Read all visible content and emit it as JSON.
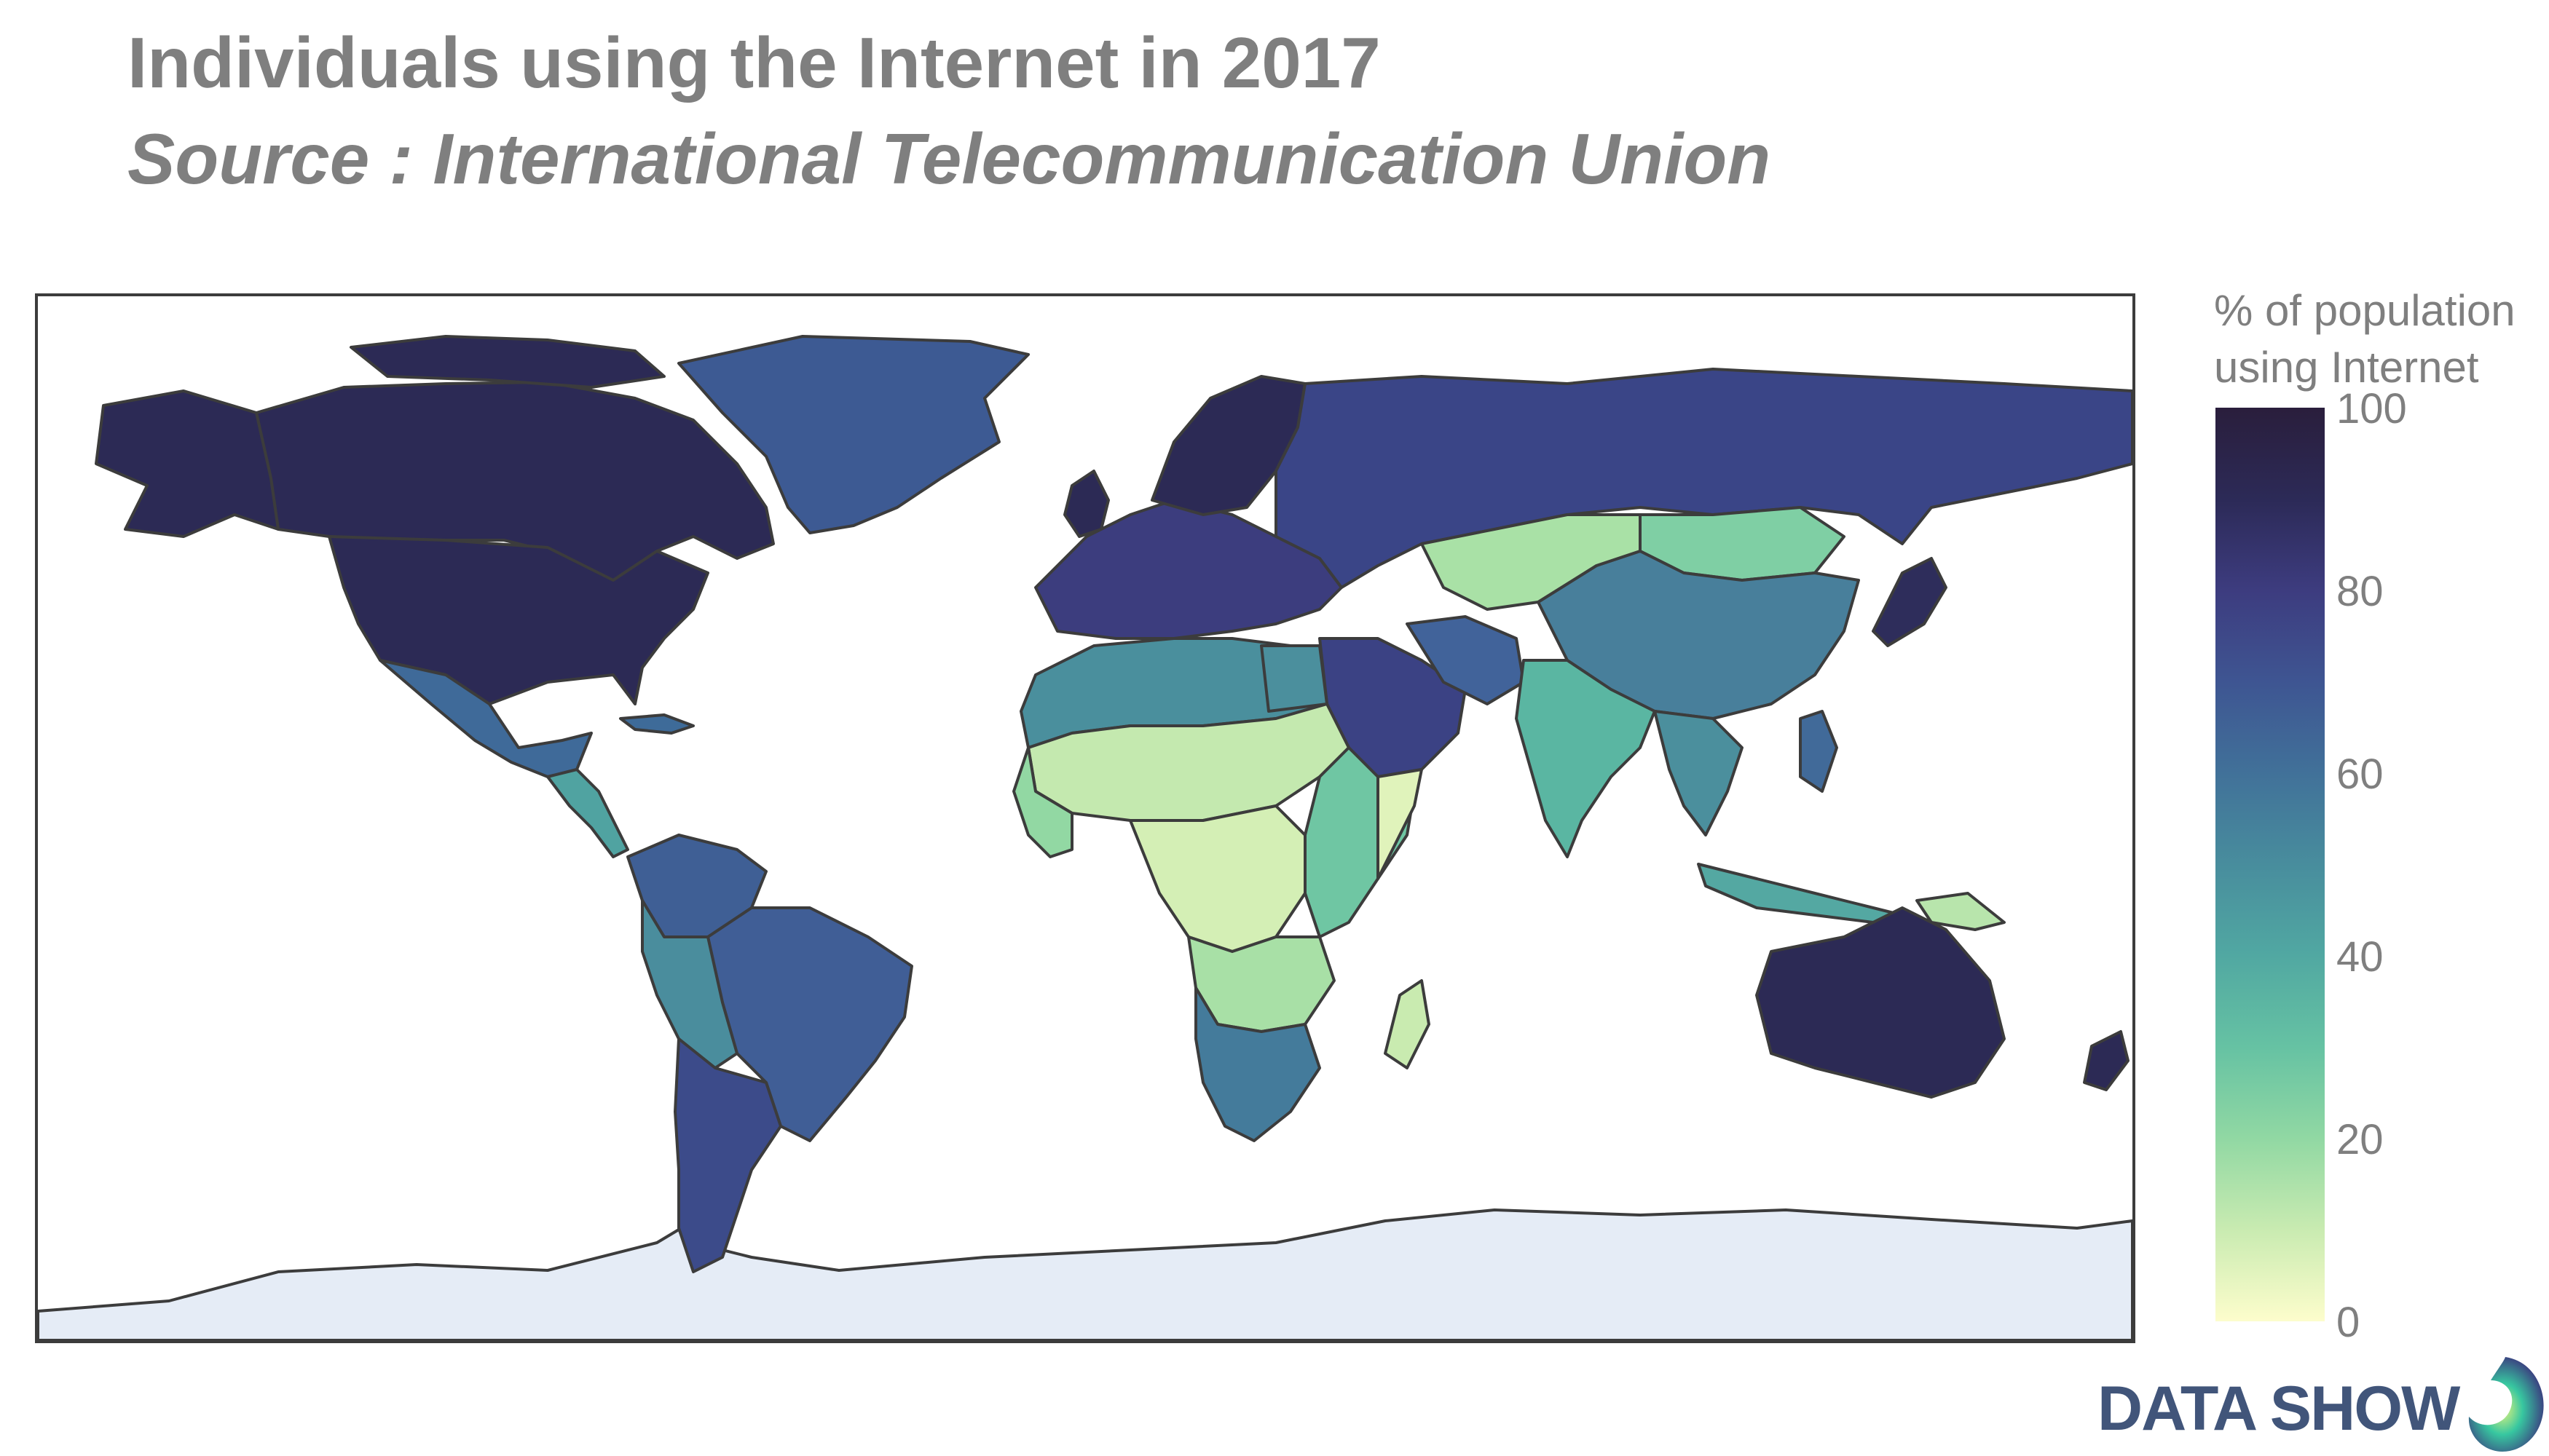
{
  "header": {
    "title": "Individuals using the Internet in 2017",
    "subtitle": "Source : International Telecommunication Union"
  },
  "colorbar": {
    "title_line1": "% of population",
    "title_line2": "using Internet",
    "ticks": [
      "100",
      "80",
      "60",
      "40",
      "20",
      "0"
    ],
    "range": [
      0,
      100
    ],
    "colors": [
      "#fdfdcc",
      "#c9ebb1",
      "#91d8a3",
      "#66c2a3",
      "#51a8a2",
      "#488d9d",
      "#417199",
      "#3e5592",
      "#3d3c7f",
      "#2c2a57",
      "#2a1e3c"
    ]
  },
  "map": {
    "projection": "equirectangular",
    "land_no_data_color": "#e5ecf6",
    "border_color": "#3c3c3c"
  },
  "brand": {
    "text": "DATA SHOW",
    "logo_icon": "data-show-logo-icon"
  }
}
